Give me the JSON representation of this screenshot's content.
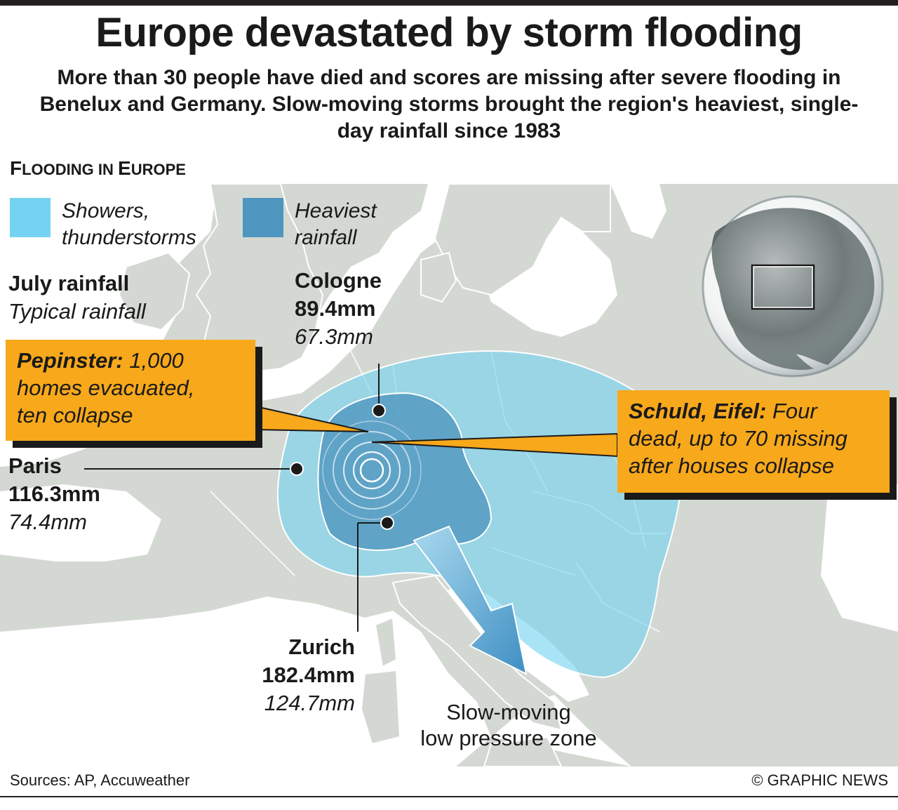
{
  "title": "Europe devastated by storm flooding",
  "subtitle": "More than 30 people have died and scores are missing after severe flooding in Benelux and Germany. Slow-moving storms brought the region's heaviest, single-day rainfall since 1983",
  "section_title_first": "F",
  "section_title_rest": "LOODING IN ",
  "section_title_e": "E",
  "section_title_end": "UROPE",
  "legend": {
    "showers_line1": "Showers,",
    "showers_line2": "thunderstorms",
    "heaviest_line1": "Heaviest",
    "heaviest_line2": "rainfall",
    "showers_color": "#74d3f0",
    "heaviest_color": "#4e95bf"
  },
  "key": {
    "july": "July rainfall",
    "typical": "Typical rainfall"
  },
  "cities": {
    "cologne": {
      "name": "Cologne",
      "july": "89.4mm",
      "typical": "67.3mm"
    },
    "paris": {
      "name": "Paris",
      "july": "116.3mm",
      "typical": "74.4mm"
    },
    "zurich": {
      "name": "Zurich",
      "july": "182.4mm",
      "typical": "124.7mm"
    }
  },
  "callouts": {
    "pepinster": {
      "place": "Pepinster:",
      "line1": " 1,000",
      "line2": "homes evacuated,",
      "line3": "ten collapse"
    },
    "schuld": {
      "place": "Schuld, Eifel:",
      "line1": " Four",
      "line2": "dead, up to 70 missing",
      "line3": "after houses collapse"
    }
  },
  "pressure": {
    "line1": "Slow-moving",
    "line2": "low pressure zone"
  },
  "sources": "Sources: AP, Accuweather",
  "copyright": "© GRAPHIC NEWS",
  "colors": {
    "land": "#d4d8d2",
    "sea": "#ffffff",
    "callout": "#f7a81b",
    "globe_land": "#5f6b6a"
  }
}
